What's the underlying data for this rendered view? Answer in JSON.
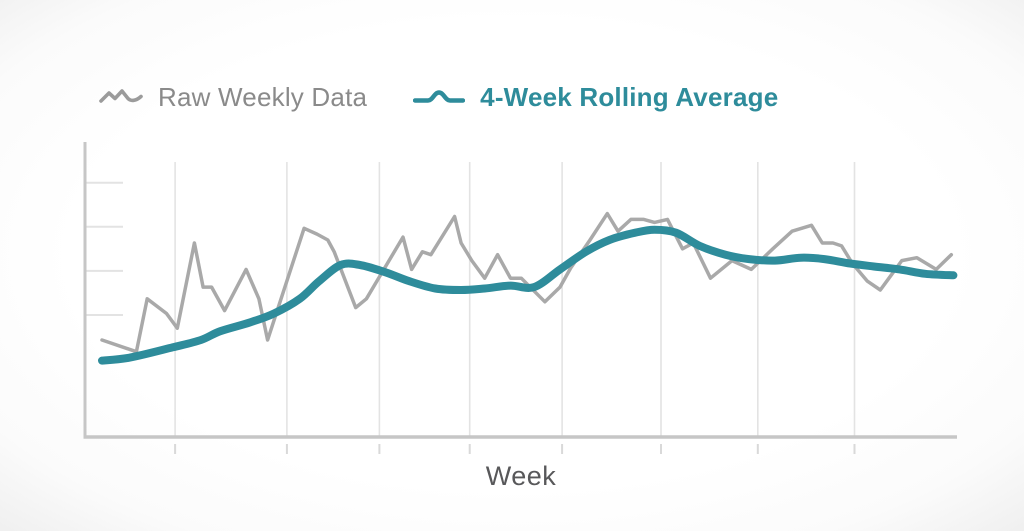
{
  "page": {
    "background": "#ffffff"
  },
  "legend": {
    "raw_label": "Raw Weekly Data",
    "avg_label": "4-Week Rolling Average",
    "raw_icon_color": "#9b9b9b",
    "raw_text_color": "#8a8a8a",
    "avg_color": "#2e8c9b"
  },
  "axis": {
    "axis_color": "#c6c6c6",
    "gridline_color": "#e3e3e3",
    "tick_color": "#d9d9d9"
  },
  "chart_data": {
    "type": "line",
    "title": "",
    "xlabel": "Week",
    "ylabel": "",
    "x_unit": "week",
    "xlim": [
      0,
      40
    ],
    "ylim": [
      0,
      100
    ],
    "grid": "vertical-only",
    "legend_position": "top",
    "y_axis_labels": "none (unlabeled tick marks)",
    "x_axis_labels": "none (unlabeled tick marks)",
    "x_gridline_weeks": [
      3.4,
      8.6,
      12.9,
      17.1,
      21.4,
      26.0,
      30.5,
      35.0
    ],
    "y_tick_values": [
      41.5,
      56.5,
      71.5,
      86.5
    ],
    "series": [
      {
        "name": "Raw Weekly Data",
        "color": "#a9a9a9",
        "stroke_width": 3.5,
        "smooth": false,
        "points": [
          [
            0,
            33
          ],
          [
            1.6,
            29
          ],
          [
            2.1,
            47
          ],
          [
            3,
            42
          ],
          [
            3.5,
            37
          ],
          [
            4.3,
            66
          ],
          [
            4.7,
            51
          ],
          [
            5.1,
            51
          ],
          [
            5.7,
            43
          ],
          [
            6.7,
            57
          ],
          [
            7.3,
            47
          ],
          [
            7.7,
            33
          ],
          [
            9.4,
            71
          ],
          [
            10,
            69
          ],
          [
            10.5,
            67
          ],
          [
            10.8,
            63
          ],
          [
            11.8,
            44
          ],
          [
            12.3,
            47
          ],
          [
            14,
            68
          ],
          [
            14.4,
            57
          ],
          [
            14.9,
            63
          ],
          [
            15.3,
            62
          ],
          [
            16.4,
            75
          ],
          [
            16.7,
            66
          ],
          [
            17.2,
            60
          ],
          [
            17.8,
            54
          ],
          [
            18.4,
            62
          ],
          [
            19,
            54
          ],
          [
            19.5,
            54
          ],
          [
            20.6,
            46
          ],
          [
            21.3,
            51
          ],
          [
            21.8,
            57.5
          ],
          [
            22.7,
            67
          ],
          [
            23.5,
            76
          ],
          [
            24,
            70
          ],
          [
            24.6,
            74
          ],
          [
            25.2,
            74
          ],
          [
            25.7,
            73
          ],
          [
            26.3,
            74
          ],
          [
            27,
            64
          ],
          [
            27.5,
            66
          ],
          [
            28.3,
            54
          ],
          [
            29.3,
            60
          ],
          [
            30.2,
            57
          ],
          [
            31.2,
            64
          ],
          [
            32.1,
            70
          ],
          [
            33,
            72
          ],
          [
            33.5,
            66
          ],
          [
            34,
            66
          ],
          [
            34.4,
            65
          ],
          [
            34.9,
            59
          ],
          [
            35.6,
            53
          ],
          [
            36.2,
            50
          ],
          [
            37.2,
            60
          ],
          [
            37.9,
            61
          ],
          [
            38.8,
            57
          ],
          [
            39.5,
            62
          ]
        ]
      },
      {
        "name": "4-Week Rolling Average",
        "color": "#2e8c9b",
        "stroke_width": 8,
        "smooth": true,
        "points": [
          [
            0,
            26
          ],
          [
            1.3,
            27
          ],
          [
            3.3,
            30.5
          ],
          [
            4.6,
            33
          ],
          [
            5.5,
            36
          ],
          [
            6.9,
            39
          ],
          [
            8,
            42
          ],
          [
            9.2,
            47
          ],
          [
            10.1,
            53
          ],
          [
            11.1,
            58.5
          ],
          [
            12,
            58.5
          ],
          [
            13.2,
            56
          ],
          [
            14.3,
            53
          ],
          [
            15.5,
            50.5
          ],
          [
            16.7,
            50
          ],
          [
            17.8,
            50.5
          ],
          [
            19,
            51.5
          ],
          [
            20.1,
            51
          ],
          [
            21.3,
            57
          ],
          [
            22.5,
            63
          ],
          [
            23.6,
            67
          ],
          [
            24.8,
            69.5
          ],
          [
            25.7,
            70.5
          ],
          [
            26.7,
            69.5
          ],
          [
            27.8,
            65
          ],
          [
            29,
            62
          ],
          [
            30.1,
            60.5
          ],
          [
            31.3,
            60
          ],
          [
            32.5,
            61
          ],
          [
            33.6,
            60.5
          ],
          [
            34.8,
            59
          ],
          [
            35.9,
            58
          ],
          [
            37.1,
            57
          ],
          [
            38.3,
            55.5
          ],
          [
            39.6,
            55
          ]
        ]
      }
    ]
  }
}
